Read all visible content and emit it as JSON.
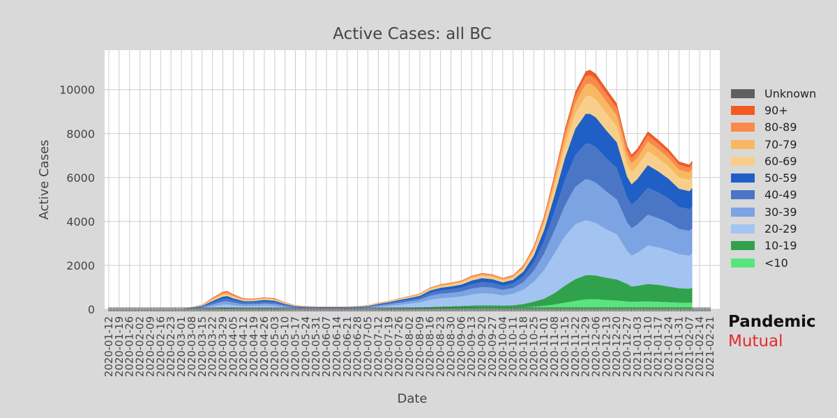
{
  "colors": {
    "background": "#d9d9d9",
    "plot_background": "#ffffff",
    "grid": "#cccccc",
    "text": "#444444",
    "brand_dark": "#111111",
    "brand_red": "#e32b2b"
  },
  "brand": {
    "line1": "Pandemic",
    "line2": "Mutual"
  },
  "chart_data": {
    "type": "area",
    "stacked": true,
    "title": "Active Cases: all BC",
    "xlabel": "Date",
    "ylabel": "Active Cases",
    "ylim": [
      0,
      11800
    ],
    "yticks": [
      0,
      2000,
      4000,
      6000,
      8000,
      10000
    ],
    "x_range": [
      "2020-01-12",
      "2021-02-21"
    ],
    "x_ticks": [
      "2020-01-12",
      "2020-01-19",
      "2020-01-26",
      "2020-02-02",
      "2020-02-09",
      "2020-02-16",
      "2020-02-23",
      "2020-03-01",
      "2020-03-08",
      "2020-03-15",
      "2020-03-22",
      "2020-03-29",
      "2020-04-05",
      "2020-04-12",
      "2020-04-19",
      "2020-04-26",
      "2020-05-03",
      "2020-05-10",
      "2020-05-17",
      "2020-05-24",
      "2020-05-31",
      "2020-06-07",
      "2020-06-14",
      "2020-06-21",
      "2020-06-28",
      "2020-07-05",
      "2020-07-12",
      "2020-07-19",
      "2020-07-26",
      "2020-08-02",
      "2020-08-09",
      "2020-08-16",
      "2020-08-23",
      "2020-08-30",
      "2020-09-06",
      "2020-09-13",
      "2020-09-20",
      "2020-09-27",
      "2020-10-04",
      "2020-10-11",
      "2020-10-18",
      "2020-10-25",
      "2020-11-01",
      "2020-11-08",
      "2020-11-15",
      "2020-11-22",
      "2020-11-29",
      "2020-12-06",
      "2020-12-13",
      "2020-12-20",
      "2020-12-27",
      "2021-01-03",
      "2021-01-10",
      "2021-01-17",
      "2021-01-24",
      "2021-01-31",
      "2021-02-07",
      "2021-02-14",
      "2021-02-21"
    ],
    "grid": true,
    "legend_position": "right",
    "x": [
      "2020-03-01",
      "2020-03-08",
      "2020-03-15",
      "2020-03-22",
      "2020-03-29",
      "2020-04-01",
      "2020-04-05",
      "2020-04-12",
      "2020-04-19",
      "2020-04-26",
      "2020-05-03",
      "2020-05-10",
      "2020-05-17",
      "2020-05-24",
      "2020-05-31",
      "2020-06-07",
      "2020-06-14",
      "2020-06-21",
      "2020-06-28",
      "2020-07-05",
      "2020-07-12",
      "2020-07-19",
      "2020-07-26",
      "2020-08-02",
      "2020-08-09",
      "2020-08-16",
      "2020-08-23",
      "2020-08-30",
      "2020-09-06",
      "2020-09-13",
      "2020-09-20",
      "2020-09-27",
      "2020-10-04",
      "2020-10-11",
      "2020-10-18",
      "2020-10-25",
      "2020-11-01",
      "2020-11-08",
      "2020-11-15",
      "2020-11-22",
      "2020-11-29",
      "2020-12-02",
      "2020-12-06",
      "2020-12-13",
      "2020-12-20",
      "2020-12-27",
      "2020-12-30",
      "2021-01-03",
      "2021-01-10",
      "2021-01-17",
      "2021-01-24",
      "2021-01-31",
      "2021-02-07",
      "2021-02-09"
    ],
    "series": [
      {
        "name": "<10",
        "color": "#59e57d",
        "values": [
          0,
          5,
          8,
          18,
          30,
          32,
          25,
          18,
          15,
          15,
          12,
          8,
          5,
          4,
          4,
          4,
          4,
          4,
          5,
          5,
          7,
          10,
          15,
          20,
          25,
          35,
          45,
          50,
          55,
          65,
          75,
          75,
          70,
          75,
          90,
          120,
          160,
          220,
          300,
          380,
          450,
          460,
          460,
          420,
          400,
          360,
          340,
          350,
          355,
          340,
          320,
          300,
          300,
          300
        ]
      },
      {
        "name": "10-19",
        "color": "#31a24c",
        "values": [
          0,
          5,
          10,
          25,
          40,
          42,
          35,
          25,
          25,
          28,
          22,
          15,
          10,
          8,
          8,
          8,
          8,
          8,
          10,
          12,
          20,
          25,
          35,
          45,
          55,
          70,
          80,
          85,
          95,
          105,
          110,
          110,
          100,
          110,
          150,
          230,
          330,
          520,
          780,
          990,
          1100,
          1100,
          1080,
          1020,
          960,
          800,
          700,
          720,
          800,
          780,
          720,
          660,
          640,
          680
        ]
      },
      {
        "name": "20-29",
        "color": "#a3c3f1",
        "values": [
          0,
          20,
          40,
          90,
          140,
          145,
          120,
          100,
          105,
          125,
          115,
          70,
          40,
          30,
          25,
          25,
          25,
          25,
          30,
          45,
          80,
          115,
          150,
          190,
          230,
          330,
          380,
          400,
          430,
          500,
          540,
          520,
          460,
          520,
          650,
          900,
          1300,
          1800,
          2250,
          2500,
          2500,
          2450,
          2380,
          2200,
          2050,
          1500,
          1400,
          1500,
          1750,
          1700,
          1650,
          1550,
          1500,
          1550
        ]
      },
      {
        "name": "30-39",
        "color": "#7ca4e2",
        "values": [
          0,
          20,
          40,
          90,
          140,
          145,
          120,
          90,
          90,
          100,
          95,
          60,
          35,
          28,
          25,
          25,
          25,
          25,
          28,
          35,
          60,
          75,
          95,
          110,
          130,
          180,
          200,
          215,
          230,
          270,
          290,
          280,
          250,
          270,
          350,
          500,
          750,
          1050,
          1400,
          1700,
          1880,
          1880,
          1840,
          1720,
          1600,
          1300,
          1250,
          1300,
          1400,
          1330,
          1250,
          1150,
          1130,
          1150
        ]
      },
      {
        "name": "40-49",
        "color": "#4a76c5",
        "values": [
          0,
          15,
          35,
          80,
          120,
          125,
          105,
          75,
          75,
          85,
          80,
          50,
          30,
          23,
          20,
          20,
          20,
          20,
          22,
          28,
          45,
          55,
          70,
          80,
          95,
          130,
          150,
          160,
          170,
          200,
          220,
          210,
          190,
          200,
          260,
          380,
          580,
          860,
          1150,
          1450,
          1620,
          1640,
          1620,
          1520,
          1420,
          1120,
          1080,
          1120,
          1230,
          1170,
          1100,
          1000,
          990,
          1000
        ]
      },
      {
        "name": "50-59",
        "color": "#1f5fc6",
        "values": [
          0,
          15,
          30,
          75,
          110,
          115,
          95,
          65,
          65,
          75,
          70,
          45,
          26,
          20,
          18,
          18,
          18,
          18,
          20,
          25,
          40,
          48,
          60,
          70,
          80,
          110,
          125,
          135,
          145,
          170,
          185,
          180,
          160,
          170,
          220,
          320,
          500,
          750,
          1000,
          1200,
          1350,
          1370,
          1350,
          1260,
          1180,
          960,
          920,
          950,
          1030,
          960,
          900,
          830,
          820,
          850
        ]
      },
      {
        "name": "60-69",
        "color": "#f7cf8a",
        "values": [
          0,
          10,
          20,
          50,
          70,
          72,
          60,
          40,
          40,
          45,
          42,
          27,
          16,
          12,
          11,
          11,
          11,
          11,
          12,
          15,
          22,
          26,
          32,
          38,
          45,
          60,
          70,
          75,
          80,
          95,
          100,
          95,
          85,
          90,
          120,
          180,
          270,
          400,
          550,
          700,
          800,
          830,
          820,
          780,
          720,
          580,
          560,
          580,
          640,
          600,
          560,
          520,
          510,
          520
        ]
      },
      {
        "name": "70-79",
        "color": "#f8b862",
        "values": [
          0,
          8,
          15,
          40,
          60,
          62,
          50,
          33,
          30,
          33,
          30,
          20,
          12,
          9,
          8,
          8,
          8,
          8,
          9,
          11,
          15,
          17,
          22,
          25,
          30,
          40,
          45,
          48,
          52,
          60,
          65,
          62,
          55,
          60,
          80,
          120,
          180,
          270,
          370,
          470,
          540,
          560,
          550,
          530,
          500,
          390,
          380,
          380,
          430,
          400,
          380,
          350,
          340,
          350
        ]
      },
      {
        "name": "80-89",
        "color": "#f98a4b",
        "values": [
          0,
          6,
          12,
          35,
          55,
          57,
          45,
          28,
          25,
          26,
          24,
          15,
          9,
          7,
          6,
          6,
          6,
          6,
          7,
          8,
          10,
          12,
          15,
          17,
          20,
          27,
          30,
          32,
          35,
          40,
          43,
          42,
          37,
          40,
          55,
          80,
          120,
          180,
          250,
          320,
          370,
          380,
          380,
          360,
          340,
          270,
          260,
          260,
          290,
          270,
          250,
          230,
          220,
          230
        ]
      },
      {
        "name": "90+",
        "color": "#f25a24",
        "values": [
          0,
          3,
          6,
          20,
          35,
          36,
          30,
          18,
          15,
          15,
          14,
          9,
          5,
          4,
          4,
          4,
          4,
          4,
          4,
          5,
          6,
          7,
          8,
          9,
          10,
          13,
          15,
          16,
          17,
          20,
          22,
          22,
          20,
          22,
          30,
          45,
          70,
          110,
          150,
          190,
          220,
          230,
          230,
          220,
          205,
          160,
          155,
          155,
          175,
          165,
          150,
          135,
          130,
          140
        ]
      },
      {
        "name": "Unknown",
        "color": "#606060",
        "values": [
          0,
          1,
          2,
          3,
          4,
          4,
          3,
          2,
          2,
          2,
          2,
          1,
          1,
          1,
          1,
          1,
          1,
          1,
          1,
          1,
          1,
          1,
          1,
          1,
          1,
          1,
          1,
          1,
          1,
          1,
          1,
          1,
          1,
          1,
          2,
          2,
          3,
          4,
          5,
          6,
          7,
          7,
          7,
          7,
          6,
          6,
          6,
          6,
          6,
          6,
          6,
          6,
          6,
          6
        ]
      }
    ]
  }
}
